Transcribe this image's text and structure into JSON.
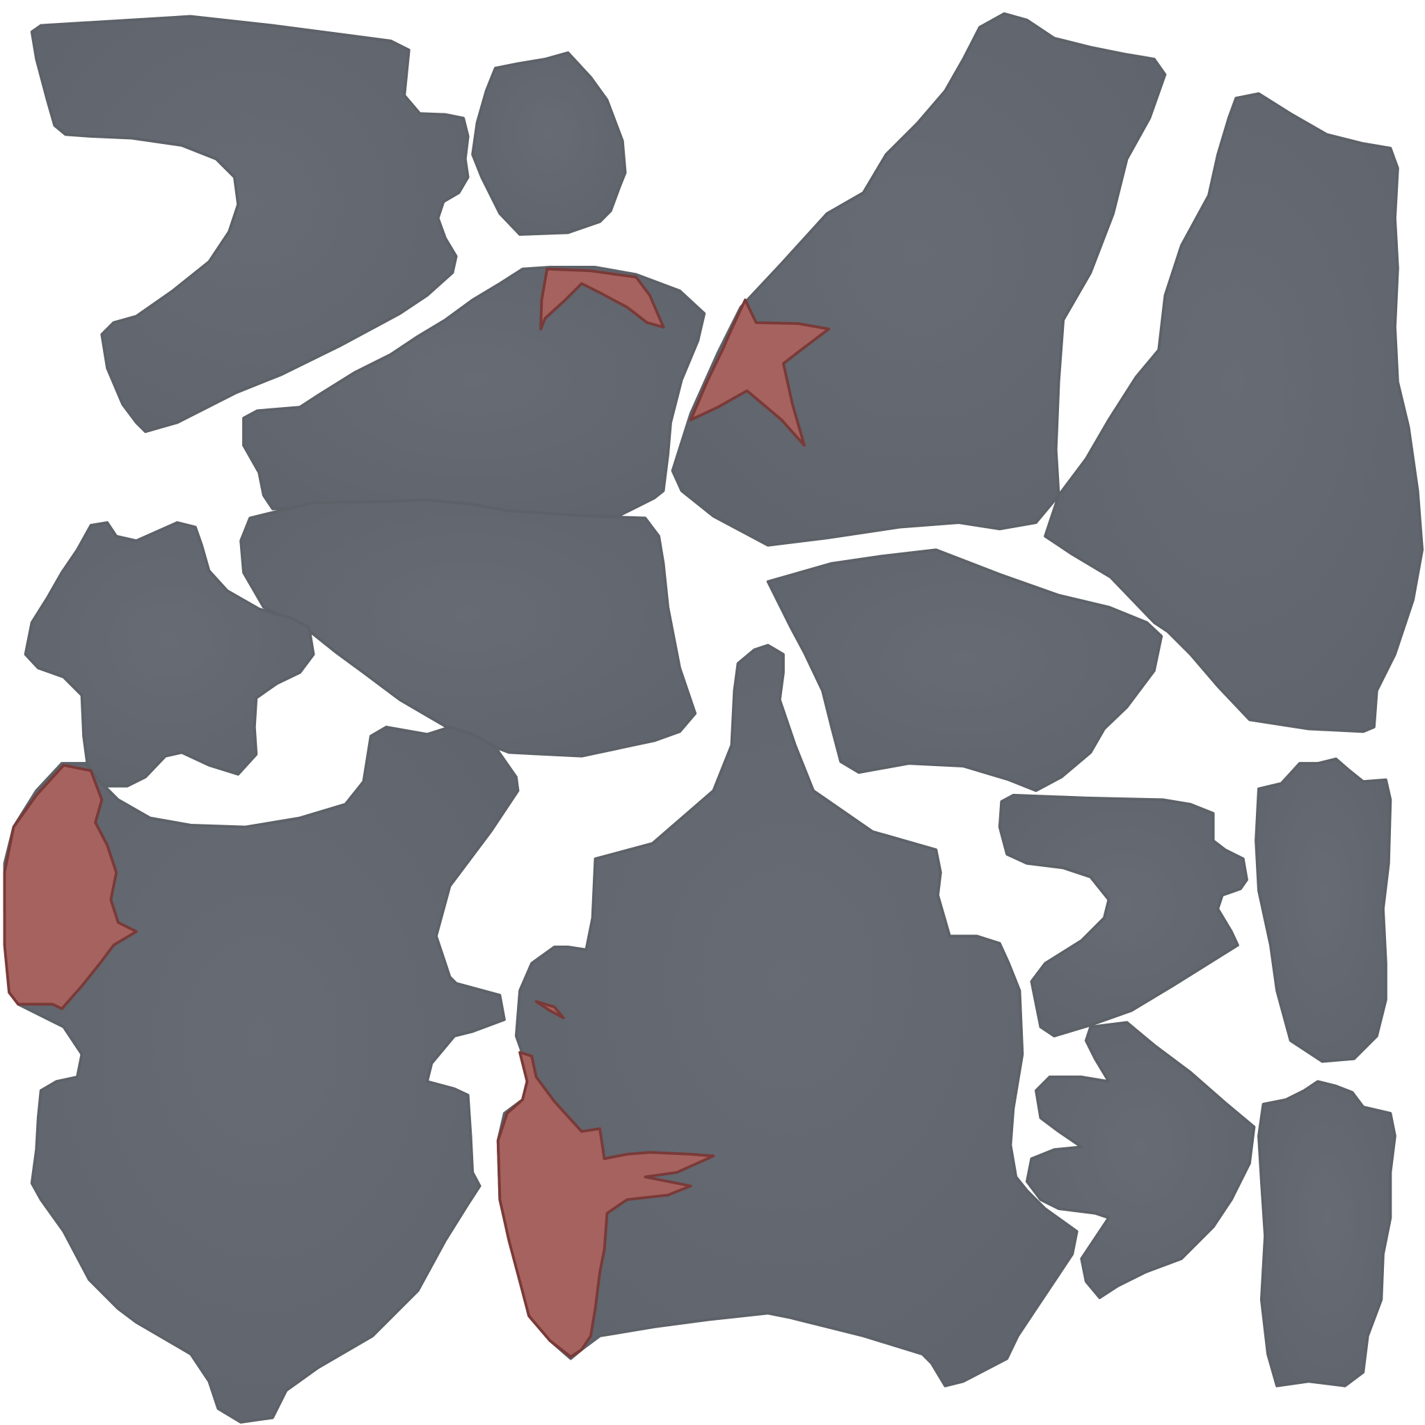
{
  "texture": {
    "background_color": "#ffffff",
    "cloth_color": "#676b73",
    "cloth_shade_color": "#5f636b",
    "patch_color": "#a6625e",
    "patch_outline_color": "#7a3a38"
  }
}
